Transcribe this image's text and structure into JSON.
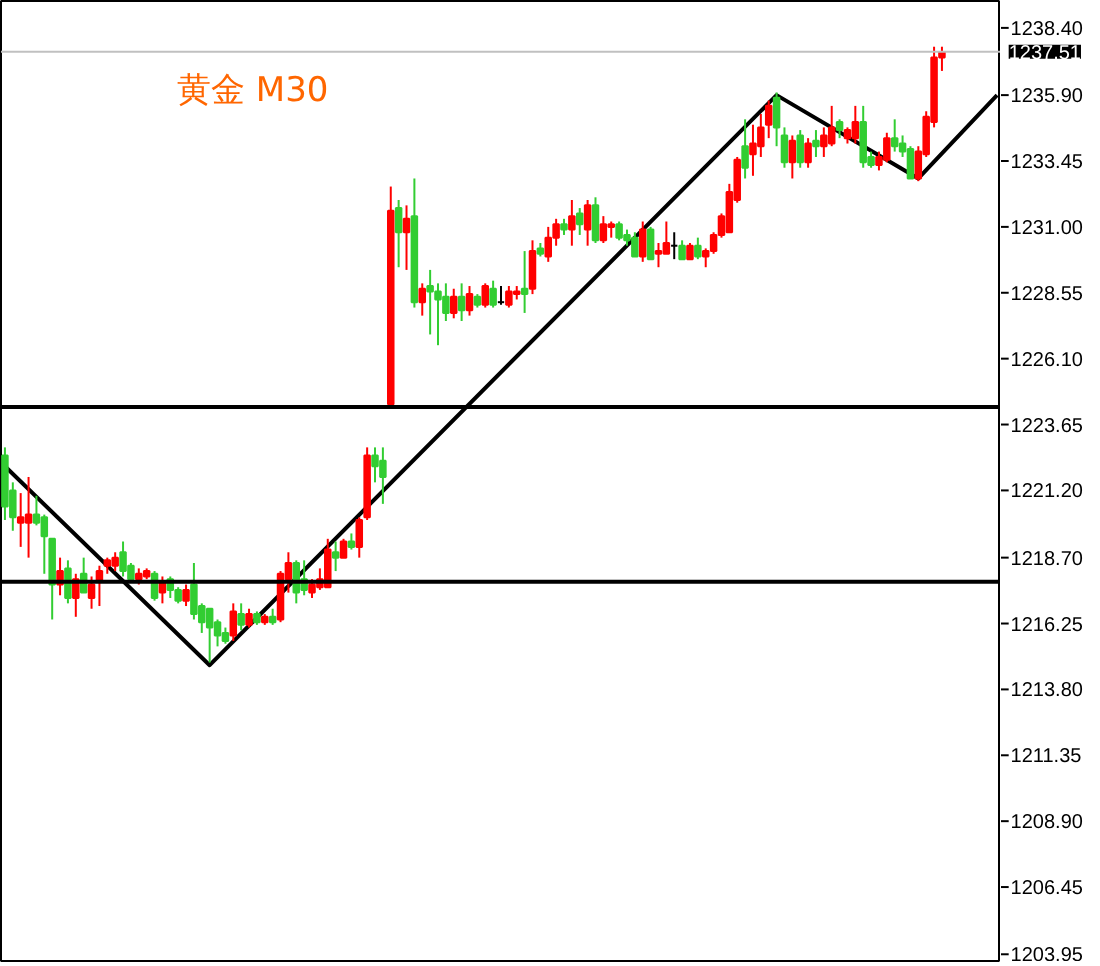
{
  "chart_data": {
    "type": "candlestick",
    "title": "黄金 M30",
    "categories": [
      null,
      null,
      null,
      null,
      null,
      null,
      null,
      null,
      null,
      null,
      null,
      null,
      null,
      null,
      null,
      null,
      null,
      null,
      null,
      null,
      null,
      null,
      null,
      null,
      null,
      null,
      null,
      null,
      null,
      null,
      null,
      null,
      null,
      null,
      null,
      null,
      null,
      null,
      null,
      null,
      null,
      null,
      null,
      null,
      null,
      null,
      null,
      null,
      null,
      null,
      null,
      null,
      null,
      null,
      null,
      null,
      null,
      null,
      null,
      null,
      null,
      null,
      null,
      null,
      null,
      null,
      null,
      null,
      null,
      null,
      null,
      null,
      null,
      null,
      null,
      null,
      null,
      null,
      null,
      null,
      null,
      null,
      null,
      null,
      null,
      null,
      null,
      null,
      null,
      null,
      null,
      null,
      null,
      null,
      null,
      null,
      null,
      null,
      null,
      null,
      null,
      null,
      null,
      null,
      null,
      null,
      null,
      null,
      null,
      null,
      null,
      null,
      null,
      null,
      null,
      null,
      null,
      null,
      null,
      null,
      null,
      null,
      null,
      null,
      null,
      null,
      null
    ],
    "ohlc": [
      [
        1222.5,
        1222.8,
        1220.1,
        1220.6
      ],
      [
        1221.2,
        1221.5,
        1219.7,
        1220.2
      ],
      [
        1220.0,
        1221.1,
        1219.1,
        1220.2
      ],
      [
        1220.0,
        1221.7,
        1218.7,
        1220.3
      ],
      [
        1220.3,
        1221.0,
        1219.9,
        1220.0
      ],
      [
        1220.2,
        1220.3,
        1218.1,
        1219.5
      ],
      [
        1219.4,
        1219.4,
        1216.4,
        1217.7
      ],
      [
        1217.7,
        1218.7,
        1217.3,
        1218.2
      ],
      [
        1218.3,
        1218.6,
        1217.0,
        1217.2
      ],
      [
        1217.2,
        1218.1,
        1216.5,
        1217.9
      ],
      [
        1218.1,
        1218.7,
        1217.4,
        1217.4
      ],
      [
        1217.2,
        1218.0,
        1216.8,
        1217.7
      ],
      [
        1217.8,
        1218.4,
        1216.9,
        1218.2
      ],
      [
        1218.4,
        1218.7,
        1218.1,
        1218.6
      ],
      [
        1218.4,
        1218.9,
        1218.2,
        1218.7
      ],
      [
        1218.9,
        1219.3,
        1218.0,
        1218.2
      ],
      [
        1218.4,
        1218.5,
        1217.8,
        1217.9
      ],
      [
        1217.9,
        1218.3,
        1217.7,
        1218.1
      ],
      [
        1218.0,
        1218.3,
        1217.9,
        1218.2
      ],
      [
        1218.1,
        1218.2,
        1217.1,
        1217.2
      ],
      [
        1217.4,
        1218.0,
        1217.0,
        1217.8
      ],
      [
        1217.9,
        1218.0,
        1217.2,
        1217.5
      ],
      [
        1217.5,
        1217.6,
        1217.0,
        1217.1
      ],
      [
        1217.1,
        1217.7,
        1216.9,
        1217.5
      ],
      [
        1217.7,
        1218.5,
        1216.4,
        1216.6
      ],
      [
        1216.9,
        1217.0,
        1215.9,
        1216.3
      ],
      [
        1216.8,
        1216.8,
        1214.8,
        1216.1
      ],
      [
        1216.3,
        1216.4,
        1215.4,
        1215.8
      ],
      [
        1215.9,
        1216.1,
        1215.5,
        1215.6
      ],
      [
        1215.8,
        1217.0,
        1215.6,
        1216.7
      ],
      [
        1216.6,
        1217.0,
        1216.0,
        1216.2
      ],
      [
        1216.2,
        1216.8,
        1216.1,
        1216.6
      ],
      [
        1216.6,
        1216.7,
        1216.2,
        1216.3
      ],
      [
        1216.3,
        1216.6,
        1216.2,
        1216.5
      ],
      [
        1216.5,
        1216.8,
        1216.2,
        1216.3
      ],
      [
        1216.4,
        1218.2,
        1216.3,
        1218.1
      ],
      [
        1217.9,
        1218.9,
        1217.4,
        1218.5
      ],
      [
        1218.5,
        1218.6,
        1217.0,
        1217.4
      ],
      [
        1217.9,
        1218.6,
        1217.3,
        1217.5
      ],
      [
        1217.4,
        1217.9,
        1217.2,
        1217.7
      ],
      [
        1217.6,
        1218.3,
        1217.5,
        1217.9
      ],
      [
        1217.6,
        1219.4,
        1217.6,
        1219.0
      ],
      [
        1218.9,
        1219.3,
        1218.2,
        1218.7
      ],
      [
        1218.7,
        1219.4,
        1218.7,
        1219.3
      ],
      [
        1219.3,
        1219.6,
        1219.0,
        1219.1
      ],
      [
        1219.1,
        1220.2,
        1218.7,
        1220.1
      ],
      [
        1220.2,
        1222.8,
        1220.1,
        1222.5
      ],
      [
        1222.5,
        1222.8,
        1221.5,
        1222.1
      ],
      [
        1222.3,
        1222.8,
        1220.7,
        1221.7
      ],
      [
        1224.4,
        1232.5,
        1224.4,
        1231.6
      ],
      [
        1231.7,
        1232.0,
        1229.5,
        1230.8
      ],
      [
        1230.8,
        1231.8,
        1229.4,
        1231.3
      ],
      [
        1231.4,
        1232.8,
        1228.0,
        1228.2
      ],
      [
        1228.2,
        1228.9,
        1227.7,
        1228.7
      ],
      [
        1228.8,
        1229.4,
        1227.0,
        1228.6
      ],
      [
        1228.6,
        1228.9,
        1226.6,
        1228.3
      ],
      [
        1228.4,
        1228.9,
        1227.5,
        1227.8
      ],
      [
        1227.8,
        1228.7,
        1227.6,
        1228.4
      ],
      [
        1228.4,
        1228.9,
        1227.5,
        1227.9
      ],
      [
        1227.9,
        1228.8,
        1227.7,
        1228.5
      ],
      [
        1228.4,
        1228.5,
        1228.0,
        1228.1
      ],
      [
        1228.1,
        1228.9,
        1228.0,
        1228.8
      ],
      [
        1228.7,
        1229.0,
        1228.0,
        1228.1
      ],
      [
        1228.2,
        1228.8,
        1228.1,
        1228.2
      ],
      [
        1228.1,
        1228.8,
        1228.0,
        1228.6
      ],
      [
        1228.5,
        1228.8,
        1228.3,
        1228.6
      ],
      [
        1228.7,
        1230.1,
        1227.8,
        1228.5
      ],
      [
        1228.7,
        1230.5,
        1228.5,
        1230.1
      ],
      [
        1230.2,
        1230.4,
        1229.9,
        1230.0
      ],
      [
        1229.9,
        1231.0,
        1229.7,
        1230.6
      ],
      [
        1230.6,
        1231.3,
        1230.3,
        1231.1
      ],
      [
        1231.1,
        1231.3,
        1230.7,
        1230.9
      ],
      [
        1230.9,
        1232.0,
        1230.3,
        1231.4
      ],
      [
        1231.5,
        1231.7,
        1230.7,
        1231.1
      ],
      [
        1230.9,
        1232.0,
        1230.3,
        1231.8
      ],
      [
        1231.8,
        1232.1,
        1230.4,
        1230.5
      ],
      [
        1230.5,
        1231.4,
        1230.4,
        1231.1
      ],
      [
        1231.0,
        1231.2,
        1230.6,
        1231.1
      ],
      [
        1231.1,
        1231.2,
        1230.5,
        1230.6
      ],
      [
        1230.7,
        1230.9,
        1230.3,
        1230.5
      ],
      [
        1230.6,
        1230.8,
        1229.9,
        1229.9
      ],
      [
        1229.9,
        1231.2,
        1229.7,
        1230.9
      ],
      [
        1230.9,
        1231.0,
        1229.8,
        1229.8
      ],
      [
        1230.0,
        1230.4,
        1229.5,
        1230.1
      ],
      [
        1230.0,
        1231.2,
        1230.0,
        1230.4
      ],
      [
        1230.3,
        1230.8,
        1229.8,
        1230.3
      ],
      [
        1230.3,
        1230.5,
        1229.8,
        1229.8
      ],
      [
        1229.8,
        1230.4,
        1229.8,
        1230.3
      ],
      [
        1230.3,
        1230.6,
        1229.8,
        1229.9
      ],
      [
        1229.9,
        1230.2,
        1229.5,
        1230.1
      ],
      [
        1230.1,
        1230.8,
        1230.0,
        1230.7
      ],
      [
        1230.7,
        1231.5,
        1230.6,
        1231.4
      ],
      [
        1230.8,
        1232.6,
        1230.8,
        1232.3
      ],
      [
        1232.0,
        1233.6,
        1231.9,
        1233.5
      ],
      [
        1234.0,
        1235.0,
        1232.8,
        1233.2
      ],
      [
        1233.7,
        1234.8,
        1232.9,
        1234.1
      ],
      [
        1234.0,
        1235.2,
        1233.6,
        1234.7
      ],
      [
        1234.8,
        1235.7,
        1234.3,
        1235.5
      ],
      [
        1235.8,
        1236.0,
        1234.0,
        1234.7
      ],
      [
        1234.4,
        1234.7,
        1233.2,
        1233.4
      ],
      [
        1233.4,
        1234.4,
        1232.8,
        1234.2
      ],
      [
        1234.4,
        1234.6,
        1233.2,
        1233.4
      ],
      [
        1233.4,
        1234.3,
        1233.2,
        1234.1
      ],
      [
        1234.2,
        1234.6,
        1233.6,
        1234.0
      ],
      [
        1234.0,
        1234.7,
        1233.6,
        1234.4
      ],
      [
        1234.1,
        1235.5,
        1234.0,
        1234.7
      ],
      [
        1234.9,
        1235.0,
        1234.3,
        1234.6
      ],
      [
        1234.3,
        1234.7,
        1234.1,
        1234.6
      ],
      [
        1234.3,
        1235.5,
        1234.1,
        1234.9
      ],
      [
        1234.9,
        1235.5,
        1233.2,
        1233.4
      ],
      [
        1233.6,
        1233.8,
        1233.2,
        1233.3
      ],
      [
        1233.3,
        1233.8,
        1233.1,
        1233.6
      ],
      [
        1233.5,
        1234.5,
        1233.4,
        1234.3
      ],
      [
        1234.3,
        1235.0,
        1233.8,
        1234.0
      ],
      [
        1234.1,
        1234.4,
        1233.6,
        1233.8
      ],
      [
        1233.9,
        1234.0,
        1232.8,
        1232.8
      ],
      [
        1232.8,
        1234.0,
        1232.7,
        1233.8
      ],
      [
        1233.7,
        1235.3,
        1233.6,
        1235.1
      ],
      [
        1234.9,
        1237.7,
        1234.7,
        1237.3
      ],
      [
        1237.3,
        1237.7,
        1236.8,
        1237.5
      ],
      null,
      null,
      null,
      null,
      null,
      null,
      null
    ],
    "colors": [
      "#32cd32",
      "#32cd32",
      "#ff0000",
      "#ff0000",
      "#32cd32",
      "#32cd32",
      "#32cd32",
      "#ff0000",
      "#32cd32",
      "#ff0000",
      "#32cd32",
      "#ff0000",
      "#ff0000",
      "#ff0000",
      "#ff0000",
      "#32cd32",
      "#32cd32",
      "#ff0000",
      "#ff0000",
      "#32cd32",
      "#ff0000",
      "#32cd32",
      "#32cd32",
      "#ff0000",
      "#32cd32",
      "#32cd32",
      "#32cd32",
      "#32cd32",
      "#32cd32",
      "#ff0000",
      "#32cd32",
      "#ff0000",
      "#32cd32",
      "#ff0000",
      "#32cd32",
      "#ff0000",
      "#ff0000",
      "#32cd32",
      "#32cd32",
      "#ff0000",
      "#ff0000",
      "#ff0000",
      "#32cd32",
      "#ff0000",
      "#32cd32",
      "#ff0000",
      "#ff0000",
      "#32cd32",
      "#32cd32",
      "#ff0000",
      "#32cd32",
      "#ff0000",
      "#32cd32",
      "#ff0000",
      "#32cd32",
      "#32cd32",
      "#32cd32",
      "#ff0000",
      "#32cd32",
      "#ff0000",
      "#32cd32",
      "#ff0000",
      "#32cd32",
      "#000000",
      "#ff0000",
      "#ff0000",
      "#32cd32",
      "#ff0000",
      "#32cd32",
      "#ff0000",
      "#ff0000",
      "#32cd32",
      "#ff0000",
      "#32cd32",
      "#ff0000",
      "#32cd32",
      "#ff0000",
      "#ff0000",
      "#32cd32",
      "#32cd32",
      "#32cd32",
      "#ff0000",
      "#32cd32",
      "#ff0000",
      "#ff0000",
      "#000000",
      "#32cd32",
      "#ff0000",
      "#32cd32",
      "#ff0000",
      "#ff0000",
      "#ff0000",
      "#ff0000",
      "#ff0000",
      "#32cd32",
      "#ff0000",
      "#ff0000",
      "#ff0000",
      "#32cd32",
      "#32cd32",
      "#ff0000",
      "#32cd32",
      "#ff0000",
      "#32cd32",
      "#ff0000",
      "#ff0000",
      "#32cd32",
      "#ff0000",
      "#ff0000",
      "#32cd32",
      "#32cd32",
      "#ff0000",
      "#ff0000",
      "#32cd32",
      "#32cd32",
      "#32cd32",
      "#ff0000",
      "#ff0000",
      "#ff0000",
      "#ff0000",
      null,
      null,
      null,
      null,
      null,
      null,
      null
    ],
    "series": [
      {
        "type": "line",
        "color": "#000000",
        "values": [
          1222.1,
          null,
          null,
          null,
          null,
          null,
          null,
          null,
          null,
          null,
          null,
          null,
          null,
          null,
          null,
          null,
          null,
          null,
          null,
          null,
          null,
          null,
          null,
          null,
          null,
          null,
          1214.7,
          null,
          null,
          null,
          null,
          null,
          null,
          null,
          null,
          null,
          null,
          null,
          null,
          null,
          null,
          null,
          null,
          null,
          null,
          null,
          null,
          null,
          null,
          null,
          null,
          null,
          null,
          null,
          null,
          null,
          null,
          null,
          null,
          null,
          null,
          null,
          null,
          null,
          null,
          null,
          null,
          null,
          null,
          null,
          null,
          null,
          null,
          null,
          null,
          null,
          null,
          null,
          null,
          null,
          null,
          null,
          null,
          null,
          null,
          null,
          null,
          null,
          null,
          null,
          null,
          null,
          null,
          null,
          null,
          null,
          null,
          null,
          1235.9,
          null,
          null,
          null,
          null,
          null,
          null,
          null,
          null,
          null,
          null,
          null,
          null,
          null,
          null,
          null,
          null,
          null,
          1232.8,
          null,
          null,
          null,
          null,
          null,
          null,
          null,
          null,
          null,
          1235.9
        ]
      }
    ],
    "ref_lines": [
      {
        "axis": "y",
        "value": 1224.3,
        "color": "#000000"
      },
      {
        "axis": "y",
        "value": 1217.8,
        "color": "#000000"
      },
      {
        "axis": "y",
        "value": 1237.51,
        "label": "1237.51",
        "color": "#c0c0c0"
      }
    ],
    "ylim": [
      1203.7,
      1239.4
    ],
    "yticks": [
      {
        "value": 1238.4,
        "label": "1238.40"
      },
      {
        "value": 1235.9,
        "label": "1235.90"
      },
      {
        "value": 1233.45,
        "label": "1233.45"
      },
      {
        "value": 1231.0,
        "label": "1231.00"
      },
      {
        "value": 1228.55,
        "label": "1228.55"
      },
      {
        "value": 1226.1,
        "label": "1226.10"
      },
      {
        "value": 1223.65,
        "label": "1223.65"
      },
      {
        "value": 1221.2,
        "label": "1221.20"
      },
      {
        "value": 1218.7,
        "label": "1218.70"
      },
      {
        "value": 1216.25,
        "label": "1216.25"
      },
      {
        "value": 1213.8,
        "label": "1213.80"
      },
      {
        "value": 1211.35,
        "label": "1211.35"
      },
      {
        "value": 1208.9,
        "label": "1208.90"
      },
      {
        "value": 1206.45,
        "label": "1206.45"
      },
      {
        "value": 1203.95,
        "label": "1203.95"
      }
    ],
    "grid": false,
    "tick_labels": "y"
  }
}
